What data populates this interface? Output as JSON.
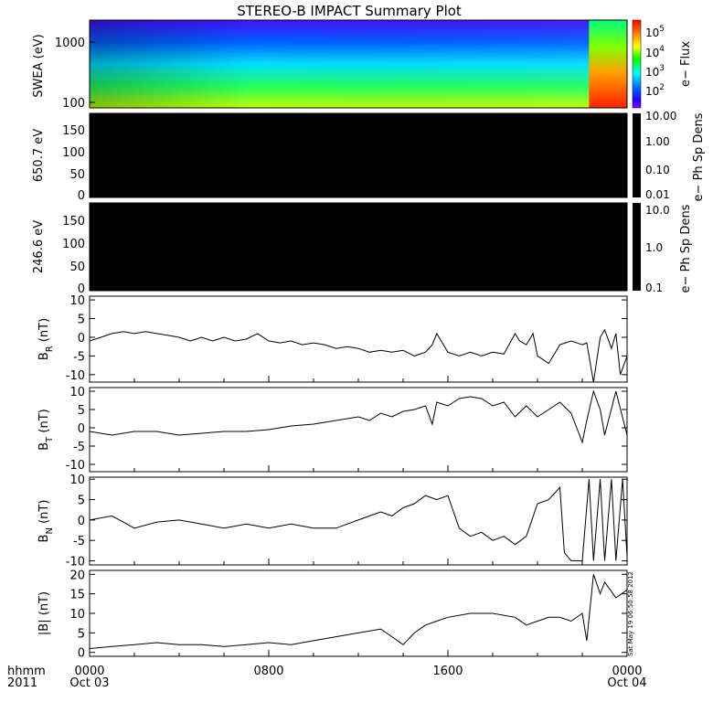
{
  "title": "STEREO-B IMPACT Summary Plot",
  "stamp": "Sat May 19 06:50:58 2012",
  "x_axis": {
    "label_left_1": "hhmm",
    "label_left_2": "2011",
    "ticks": [
      {
        "t": 0,
        "hhmm": "0000",
        "date": "Oct 03"
      },
      {
        "t": 8,
        "hhmm": "0800",
        "date": ""
      },
      {
        "t": 16,
        "hhmm": "1600",
        "date": ""
      },
      {
        "t": 24,
        "hhmm": "0000",
        "date": "Oct 04"
      }
    ],
    "range": [
      0,
      24
    ]
  },
  "colors": {
    "background": "#ffffff",
    "axes": "#000000",
    "dark_panel": "#000000"
  },
  "chart_data": [
    {
      "type": "heatmap",
      "ylabel": "SWEA (eV)",
      "ylog": true,
      "ylim": [
        95,
        2000
      ],
      "yticks": [
        "1000",
        "100"
      ],
      "colorbar_label": "e− Flux",
      "colorbar_ticks": [
        "10^5",
        "10^4",
        "10^3",
        "10^2"
      ],
      "palette": "rainbow",
      "event_start_hour": 22.3,
      "notes": "flux high at low energy (green/yellow), low at high energy (blue/purple); intensification near end of day"
    },
    {
      "type": "heatmap",
      "ylabel": "650.7 eV",
      "ylim": [
        0,
        180
      ],
      "yticks": [
        "150",
        "100",
        "50",
        "0"
      ],
      "colorbar_label": "e− Ph Sp Dens",
      "colorbar_ticks": [
        "10.00",
        "1.00",
        "0.10",
        "0.01"
      ],
      "fill": "black"
    },
    {
      "type": "heatmap",
      "ylabel": "246.6 eV",
      "ylim": [
        0,
        180
      ],
      "yticks": [
        "150",
        "100",
        "50",
        "0"
      ],
      "colorbar_label": "e− Ph Sp Dens",
      "colorbar_ticks": [
        "10.0",
        "1.0",
        "0.1"
      ],
      "fill": "black"
    },
    {
      "type": "line",
      "ylabel": "B_R (nT)",
      "ylabel_main": "B",
      "ylabel_sub": "R",
      "ylabel_unit": " (nT)",
      "ylim": [
        -12,
        11
      ],
      "yticks": [
        "10",
        "5",
        "0",
        "-5",
        "-10"
      ],
      "x": [
        0,
        0.5,
        1,
        1.5,
        2,
        2.5,
        3,
        3.5,
        4,
        4.5,
        5,
        5.5,
        6,
        6.5,
        7,
        7.5,
        8,
        8.5,
        9,
        9.5,
        10,
        10.5,
        11,
        11.5,
        12,
        12.5,
        13,
        13.5,
        14,
        14.5,
        15,
        15.3,
        15.5,
        16,
        16.5,
        17,
        17.5,
        18,
        18.5,
        19,
        19.2,
        19.5,
        19.8,
        20,
        20.5,
        21,
        21.5,
        22,
        22.2,
        22.5,
        22.8,
        23,
        23.3,
        23.5,
        23.7,
        24
      ],
      "y": [
        -1,
        0,
        1,
        1.5,
        1,
        1.5,
        1,
        0.5,
        0,
        -1,
        0,
        -1,
        0,
        -1,
        -0.5,
        1,
        -1,
        -1.5,
        -1,
        -2,
        -1.5,
        -2,
        -3,
        -2.5,
        -3,
        -4,
        -3.5,
        -4,
        -3.5,
        -5,
        -4,
        -2,
        1,
        -4,
        -5,
        -4,
        -5,
        -4,
        -4.5,
        1,
        -1,
        -2,
        1,
        -5,
        -7,
        -2,
        -1,
        -2,
        -1.5,
        -12,
        0,
        2,
        -3,
        1,
        -10,
        -5
      ]
    },
    {
      "type": "line",
      "ylabel": "B_T (nT)",
      "ylabel_main": "B",
      "ylabel_sub": "T",
      "ylabel_unit": " (nT)",
      "ylim": [
        -12,
        11
      ],
      "yticks": [
        "10",
        "5",
        "0",
        "-5",
        "-10"
      ],
      "x": [
        0,
        1,
        2,
        3,
        4,
        5,
        6,
        7,
        8,
        9,
        10,
        11,
        12,
        12.5,
        13,
        13.5,
        14,
        14.5,
        15,
        15.3,
        15.5,
        16,
        16.5,
        17,
        17.5,
        18,
        18.5,
        19,
        19.5,
        20,
        20.5,
        21,
        21.5,
        22,
        22.2,
        22.5,
        22.8,
        23,
        23.5,
        24
      ],
      "y": [
        -1,
        -2,
        -1,
        -1,
        -2,
        -1.5,
        -1,
        -1,
        -0.5,
        0.5,
        1,
        2,
        3,
        2,
        4,
        3,
        4.5,
        5,
        6,
        1,
        7,
        6,
        8,
        8.5,
        8,
        6,
        7,
        3,
        6,
        3,
        5,
        7,
        4,
        -4,
        2,
        10,
        5,
        -2,
        10,
        -2
      ]
    },
    {
      "type": "line",
      "ylabel": "B_N (nT)",
      "ylabel_main": "B",
      "ylabel_sub": "N",
      "ylabel_unit": " (nT)",
      "ylim": [
        -11,
        10.5
      ],
      "yticks": [
        "10",
        "5",
        "0",
        "-5",
        "-10"
      ],
      "x": [
        0,
        1,
        2,
        3,
        4,
        5,
        6,
        7,
        8,
        9,
        10,
        11,
        11.5,
        12,
        12.5,
        13,
        13.5,
        14,
        14.5,
        15,
        15.5,
        16,
        16.5,
        17,
        17.5,
        18,
        18.5,
        19,
        19.5,
        20,
        20.5,
        21,
        21.2,
        21.5,
        22,
        22.3,
        22.5,
        22.8,
        23,
        23.3,
        23.5,
        23.8,
        24
      ],
      "y": [
        0,
        1,
        -2,
        -0.5,
        0,
        -1,
        -2,
        -1,
        -2,
        -1,
        -2,
        -2,
        -1,
        0,
        1,
        2,
        1,
        3,
        4,
        6,
        5,
        6,
        -2,
        -4,
        -3,
        -5,
        -4,
        -6,
        -4,
        4,
        5,
        8,
        -8,
        -10,
        -10,
        10,
        -10,
        10,
        -10,
        10,
        -10,
        10,
        -9
      ]
    },
    {
      "type": "line",
      "ylabel": "|B| (nT)",
      "ylabel_main": "|B|",
      "ylabel_sub": "",
      "ylabel_unit": " (nT)",
      "ylim": [
        -1,
        21
      ],
      "yticks": [
        "20",
        "15",
        "10",
        "5",
        "0"
      ],
      "x": [
        0,
        1,
        2,
        3,
        4,
        5,
        6,
        7,
        8,
        9,
        10,
        11,
        12,
        13,
        13.5,
        14,
        14.5,
        15,
        15.5,
        16,
        17,
        18,
        19,
        19.5,
        20,
        20.5,
        21,
        21.5,
        22,
        22.2,
        22.5,
        22.8,
        23,
        23.5,
        24
      ],
      "y": [
        1,
        1.5,
        2,
        2.5,
        2,
        2,
        1.5,
        2,
        2.5,
        2,
        3,
        4,
        5,
        6,
        4,
        2,
        5,
        7,
        8,
        9,
        10,
        10,
        9,
        7,
        8,
        9,
        9,
        8,
        10,
        3,
        20,
        15,
        18,
        14,
        16
      ]
    }
  ]
}
